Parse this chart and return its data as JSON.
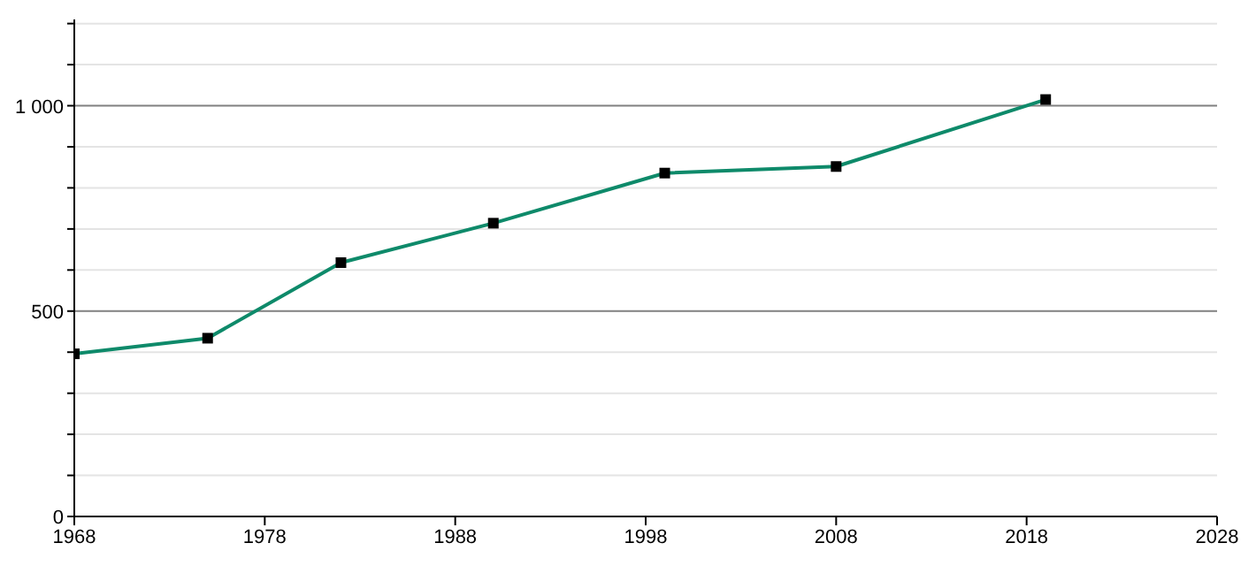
{
  "chart_data": {
    "type": "line",
    "x": [
      1968,
      1975,
      1982,
      1990,
      1999,
      2008,
      2019
    ],
    "series": [
      {
        "color": "#0e8a6a",
        "values": [
          396,
          434,
          618,
          714,
          836,
          852,
          1015
        ]
      }
    ],
    "xlim": [
      1968,
      2028
    ],
    "xticks": [
      1968,
      1978,
      1988,
      1998,
      2008,
      2018,
      2028
    ],
    "ylim": [
      0,
      1210
    ],
    "yticks": [
      0,
      {
        "value": 100,
        "label": null
      },
      {
        "value": 200,
        "label": null
      },
      {
        "value": 300,
        "label": null
      },
      {
        "value": 400,
        "label": null
      },
      500,
      {
        "value": 600,
        "label": null
      },
      {
        "value": 700,
        "label": null
      },
      {
        "value": 800,
        "label": null
      },
      {
        "value": 900,
        "label": null
      },
      {
        "value": 1000,
        "label": "1 000"
      },
      {
        "value": 1100,
        "label": null
      },
      {
        "value": 1200,
        "label": null
      }
    ],
    "grid": "y",
    "marker": "square",
    "line_style": "solid",
    "legend": false
  }
}
